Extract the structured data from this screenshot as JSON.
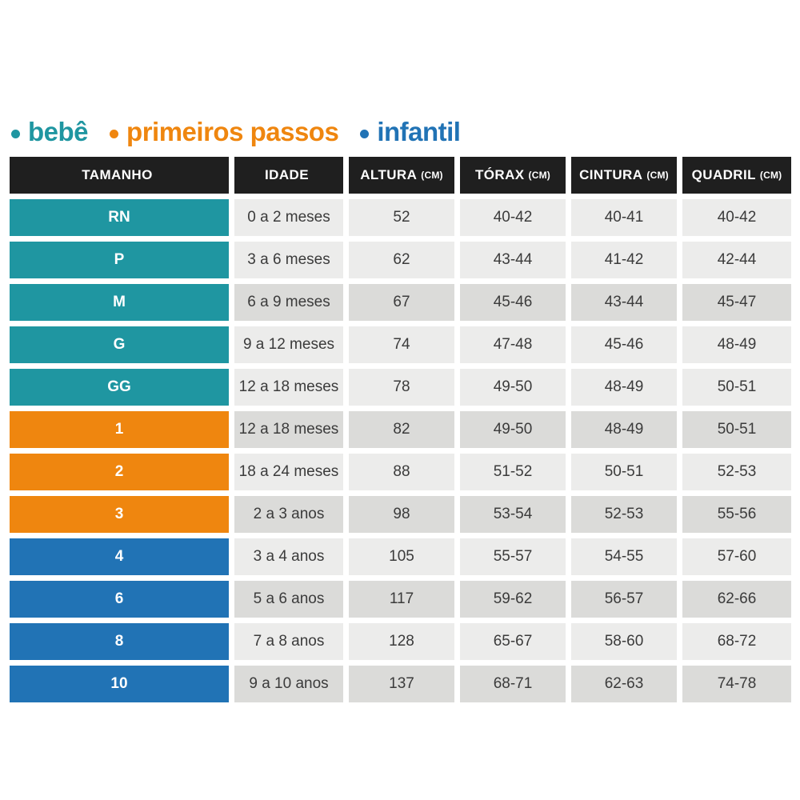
{
  "legend": {
    "items": [
      {
        "label": "bebê",
        "color": "#1f96a1",
        "group": "bebe"
      },
      {
        "label": "primeiros passos",
        "color": "#ef860f",
        "group": "primeiros-passos"
      },
      {
        "label": "infantil",
        "color": "#2173b5",
        "group": "infantil"
      }
    ]
  },
  "chart_data": {
    "type": "table",
    "columns": [
      {
        "label": "TAMANHO",
        "unit": ""
      },
      {
        "label": "IDADE",
        "unit": ""
      },
      {
        "label": "ALTURA",
        "unit": "(CM)"
      },
      {
        "label": "TÓRAX",
        "unit": "(CM)"
      },
      {
        "label": "CINTURA",
        "unit": "(CM)"
      },
      {
        "label": "QUADRIL",
        "unit": "(CM)"
      }
    ],
    "rows": [
      {
        "size": "RN",
        "group": "bebe",
        "age": "0 a 2 meses",
        "height": "52",
        "chest": "40-42",
        "waist": "40-41",
        "hip": "40-42",
        "shade": "light"
      },
      {
        "size": "P",
        "group": "bebe",
        "age": "3 a 6 meses",
        "height": "62",
        "chest": "43-44",
        "waist": "41-42",
        "hip": "42-44",
        "shade": "light"
      },
      {
        "size": "M",
        "group": "bebe",
        "age": "6 a 9 meses",
        "height": "67",
        "chest": "45-46",
        "waist": "43-44",
        "hip": "45-47",
        "shade": "dark"
      },
      {
        "size": "G",
        "group": "bebe",
        "age": "9 a 12 meses",
        "height": "74",
        "chest": "47-48",
        "waist": "45-46",
        "hip": "48-49",
        "shade": "light"
      },
      {
        "size": "GG",
        "group": "bebe",
        "age": "12 a 18 meses",
        "height": "78",
        "chest": "49-50",
        "waist": "48-49",
        "hip": "50-51",
        "shade": "light"
      },
      {
        "size": "1",
        "group": "primeiros-passos",
        "age": "12 a 18 meses",
        "height": "82",
        "chest": "49-50",
        "waist": "48-49",
        "hip": "50-51",
        "shade": "dark"
      },
      {
        "size": "2",
        "group": "primeiros-passos",
        "age": "18 a 24 meses",
        "height": "88",
        "chest": "51-52",
        "waist": "50-51",
        "hip": "52-53",
        "shade": "light"
      },
      {
        "size": "3",
        "group": "primeiros-passos",
        "age": "2 a 3 anos",
        "height": "98",
        "chest": "53-54",
        "waist": "52-53",
        "hip": "55-56",
        "shade": "dark"
      },
      {
        "size": "4",
        "group": "infantil",
        "age": "3 a 4 anos",
        "height": "105",
        "chest": "55-57",
        "waist": "54-55",
        "hip": "57-60",
        "shade": "light"
      },
      {
        "size": "6",
        "group": "infantil",
        "age": "5 a 6 anos",
        "height": "117",
        "chest": "59-62",
        "waist": "56-57",
        "hip": "62-66",
        "shade": "dark"
      },
      {
        "size": "8",
        "group": "infantil",
        "age": "7 a 8 anos",
        "height": "128",
        "chest": "65-67",
        "waist": "58-60",
        "hip": "68-72",
        "shade": "light"
      },
      {
        "size": "10",
        "group": "infantil",
        "age": "9 a 10 anos",
        "height": "137",
        "chest": "68-71",
        "waist": "62-63",
        "hip": "74-78",
        "shade": "dark"
      }
    ]
  },
  "colors": {
    "groups": {
      "bebe": "#1f96a1",
      "primeiros-passos": "#ef860f",
      "infantil": "#2173b5"
    },
    "header_bg": "#1f1f1f",
    "row_light": "#ececeb",
    "row_dark": "#dbdbd9",
    "cell_text": "#3b3b3b"
  }
}
